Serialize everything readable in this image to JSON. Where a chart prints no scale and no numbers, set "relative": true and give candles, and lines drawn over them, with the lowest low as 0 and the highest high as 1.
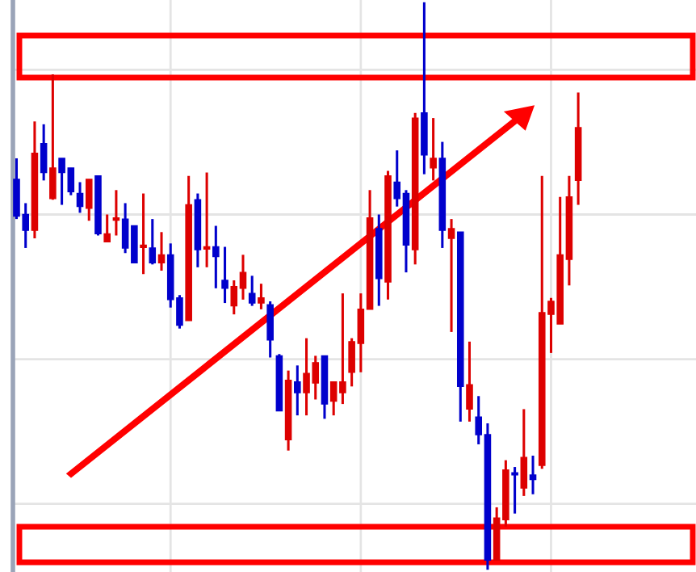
{
  "chart_data": {
    "type": "candlestick",
    "relative": true,
    "grid": true,
    "categories": [
      null,
      null,
      null,
      null,
      null,
      null,
      null,
      null,
      null,
      null,
      null,
      null,
      null,
      null,
      null,
      null,
      null,
      null,
      null,
      null,
      null,
      null,
      null,
      null,
      null,
      null,
      null,
      null,
      null,
      null,
      null,
      null,
      null,
      null,
      null,
      null,
      null,
      null,
      null,
      null,
      null,
      null,
      null,
      null,
      null,
      null,
      null,
      null,
      null,
      null,
      null,
      null,
      null,
      null,
      null,
      null,
      null,
      null,
      null,
      null,
      null,
      null,
      null
    ],
    "ohlc": [
      [
        0.688,
        0.725,
        0.618,
        0.623
      ],
      [
        0.626,
        0.646,
        0.567,
        0.598
      ],
      [
        0.598,
        0.79,
        0.584,
        0.734
      ],
      [
        0.751,
        0.785,
        0.686,
        0.7
      ],
      [
        0.654,
        0.873,
        0.652,
        0.708
      ],
      [
        0.725,
        0.725,
        0.643,
        0.7
      ],
      [
        0.708,
        0.708,
        0.66,
        0.666
      ],
      [
        0.663,
        0.683,
        0.629,
        0.64
      ],
      [
        0.637,
        0.688,
        0.615,
        0.688
      ],
      [
        0.694,
        0.694,
        0.589,
        0.592
      ],
      [
        0.578,
        0.626,
        0.578,
        0.592
      ],
      [
        0.616,
        0.669,
        0.589,
        0.618
      ],
      [
        0.618,
        0.646,
        0.558,
        0.567
      ],
      [
        0.606,
        0.606,
        0.541,
        0.541
      ],
      [
        0.568,
        0.663,
        0.521,
        0.569
      ],
      [
        0.567,
        0.618,
        0.538,
        0.541
      ],
      [
        0.541,
        0.595,
        0.527,
        0.555
      ],
      [
        0.555,
        0.575,
        0.462,
        0.476
      ],
      [
        0.479,
        0.484,
        0.425,
        0.431
      ],
      [
        0.439,
        0.694,
        0.439,
        0.643
      ],
      [
        0.652,
        0.663,
        0.533,
        0.564
      ],
      [
        0.565,
        0.7,
        0.533,
        0.567
      ],
      [
        0.569,
        0.606,
        0.496,
        0.552
      ],
      [
        0.51,
        0.569,
        0.47,
        0.496
      ],
      [
        0.465,
        0.51,
        0.45,
        0.499
      ],
      [
        0.496,
        0.555,
        0.476,
        0.524
      ],
      [
        0.487,
        0.518,
        0.465,
        0.47
      ],
      [
        0.47,
        0.504,
        0.459,
        0.479
      ],
      [
        0.467,
        0.473,
        0.374,
        0.405
      ],
      [
        0.377,
        0.38,
        0.28,
        0.28
      ],
      [
        0.229,
        0.351,
        0.21,
        0.334
      ],
      [
        0.331,
        0.36,
        0.272,
        0.312
      ],
      [
        0.312,
        0.408,
        0.272,
        0.346
      ],
      [
        0.329,
        0.377,
        0.3,
        0.365
      ],
      [
        0.377,
        0.377,
        0.266,
        0.292
      ],
      [
        0.297,
        0.331,
        0.272,
        0.331
      ],
      [
        0.312,
        0.487,
        0.292,
        0.331
      ],
      [
        0.348,
        0.408,
        0.323,
        0.402
      ],
      [
        0.399,
        0.487,
        0.348,
        0.459
      ],
      [
        0.459,
        0.669,
        0.459,
        0.62
      ],
      [
        0.601,
        0.626,
        0.465,
        0.513
      ],
      [
        0.507,
        0.703,
        0.476,
        0.694
      ],
      [
        0.683,
        0.739,
        0.64,
        0.654
      ],
      [
        0.663,
        0.669,
        0.524,
        0.572
      ],
      [
        0.564,
        0.805,
        0.538,
        0.796
      ],
      [
        0.805,
        1,
        0.697,
        0.731
      ],
      [
        0.708,
        0.796,
        0.686,
        0.725
      ],
      [
        0.725,
        0.754,
        0.567,
        0.598
      ],
      [
        0.584,
        0.618,
        0.419,
        0.601
      ],
      [
        0.595,
        0.595,
        0.261,
        0.323
      ],
      [
        0.283,
        0.402,
        0.261,
        0.326
      ],
      [
        0.269,
        0.306,
        0.221,
        0.238
      ],
      [
        0.238,
        0.258,
        0,
        0.017
      ],
      [
        0.017,
        0.11,
        0.017,
        0.091
      ],
      [
        0.088,
        0.193,
        0.076,
        0.176
      ],
      [
        0.17,
        0.181,
        0.099,
        0.167
      ],
      [
        0.144,
        0.283,
        0.13,
        0.198
      ],
      [
        0.167,
        0.201,
        0.133,
        0.159
      ],
      [
        0.184,
        0.694,
        0.178,
        0.453
      ],
      [
        0.45,
        0.479,
        0.382,
        0.473
      ],
      [
        0.433,
        0.657,
        0.433,
        0.555
      ],
      [
        0.547,
        0.694,
        0.501,
        0.657
      ],
      [
        0.686,
        0.841,
        0.643,
        0.779
      ]
    ],
    "colors": [
      "#0000cc",
      "#0000cc",
      "#dd0000",
      "#0000cc",
      "#dd0000",
      "#0000cc",
      "#0000cc",
      "#0000cc",
      "#dd0000",
      "#0000cc",
      "#dd0000",
      "#dd0000",
      "#0000cc",
      "#0000cc",
      "#dd0000",
      "#0000cc",
      "#dd0000",
      "#0000cc",
      "#0000cc",
      "#dd0000",
      "#0000cc",
      "#dd0000",
      "#0000cc",
      "#0000cc",
      "#dd0000",
      "#dd0000",
      "#0000cc",
      "#dd0000",
      "#0000cc",
      "#0000cc",
      "#dd0000",
      "#0000cc",
      "#dd0000",
      "#dd0000",
      "#0000cc",
      "#dd0000",
      "#dd0000",
      "#dd0000",
      "#dd0000",
      "#dd0000",
      "#0000cc",
      "#dd0000",
      "#0000cc",
      "#0000cc",
      "#dd0000",
      "#0000cc",
      "#dd0000",
      "#0000cc",
      "#dd0000",
      "#0000cc",
      "#dd0000",
      "#0000cc",
      "#0000cc",
      "#dd0000",
      "#dd0000",
      "#0000cc",
      "#dd0000",
      "#0000cc",
      "#dd0000",
      "#dd0000",
      "#dd0000",
      "#dd0000",
      "#dd0000"
    ]
  }
}
